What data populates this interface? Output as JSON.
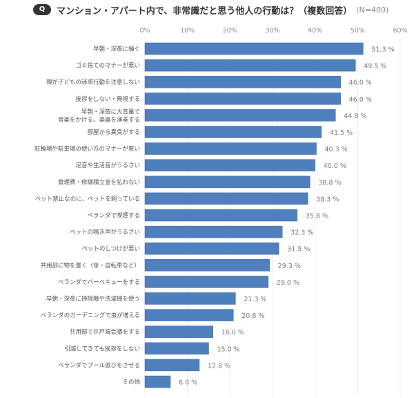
{
  "header": {
    "badge": "Q",
    "title": "マンション・アパート内で、非常識だと思う他人の行動は？（複数回答）",
    "sample": "(N=400)"
  },
  "chart_data": {
    "type": "bar",
    "orientation": "horizontal",
    "title": "マンション・アパート内で、非常識だと思う他人の行動は？（複数回答）",
    "subtitle": "(N=400)",
    "xlabel": "",
    "ylabel": "",
    "xlim": [
      0,
      60
    ],
    "x_ticks": [
      0,
      10,
      20,
      30,
      40,
      50,
      60
    ],
    "x_tick_labels": [
      "0%",
      "10%",
      "20%",
      "30%",
      "40%",
      "50%",
      "60%"
    ],
    "x_axis_position": "top",
    "grid": true,
    "bar_color": "#4f7fbd",
    "categories": [
      [
        "早朝・深夜に騒ぐ"
      ],
      [
        "ゴミ捨てのマナーが悪い"
      ],
      [
        "親が子どもの迷惑行動を注意しない"
      ],
      [
        "挨拶をしない・無視する"
      ],
      [
        "早朝・深夜に大音量で",
        "音楽をかける、楽器を演奏する"
      ],
      [
        "部屋から異臭がする"
      ],
      [
        "駐輪場や駐車場の使い方のマナーが悪い"
      ],
      [
        "足音や生活音がうるさい"
      ],
      [
        "管理費・修繕積立金を払わない"
      ],
      [
        "ペット禁止なのに、ペットを飼っている"
      ],
      [
        "ベランダで喫煙する"
      ],
      [
        "ペットの鳴き声がうるさい"
      ],
      [
        "ペットのしつけが悪い"
      ],
      [
        "共用部に物を置く（傘・自転車など）"
      ],
      [
        "ベランダでバーベキューをする"
      ],
      [
        "早朝・深夜に掃除機や洗濯機を使う"
      ],
      [
        "ベランダのガーデニングで虫が増える"
      ],
      [
        "共用部で井戸端会議をする"
      ],
      [
        "引越してきても挨拶をしない"
      ],
      [
        "ベランダでプール遊びをさせる"
      ],
      [
        "その他"
      ]
    ],
    "values": [
      51.3,
      49.5,
      46.0,
      46.0,
      44.8,
      41.5,
      40.3,
      40.0,
      38.8,
      38.3,
      35.8,
      32.3,
      31.5,
      29.3,
      29.0,
      21.3,
      20.8,
      16.0,
      15.0,
      12.8,
      6.0
    ],
    "value_labels": [
      "51.3 %",
      "49.5 %",
      "46.0 %",
      "46.0 %",
      "44.8 %",
      "41.5 %",
      "40.3 %",
      "40.0 %",
      "38.8 %",
      "38.3 %",
      "35.8 %",
      "32.3 %",
      "31.5 %",
      "29.3 %",
      "29.0 %",
      "21.3 %",
      "20.8 %",
      "16.0 %",
      "15.0 %",
      "12.8 %",
      "6.0 %"
    ]
  }
}
